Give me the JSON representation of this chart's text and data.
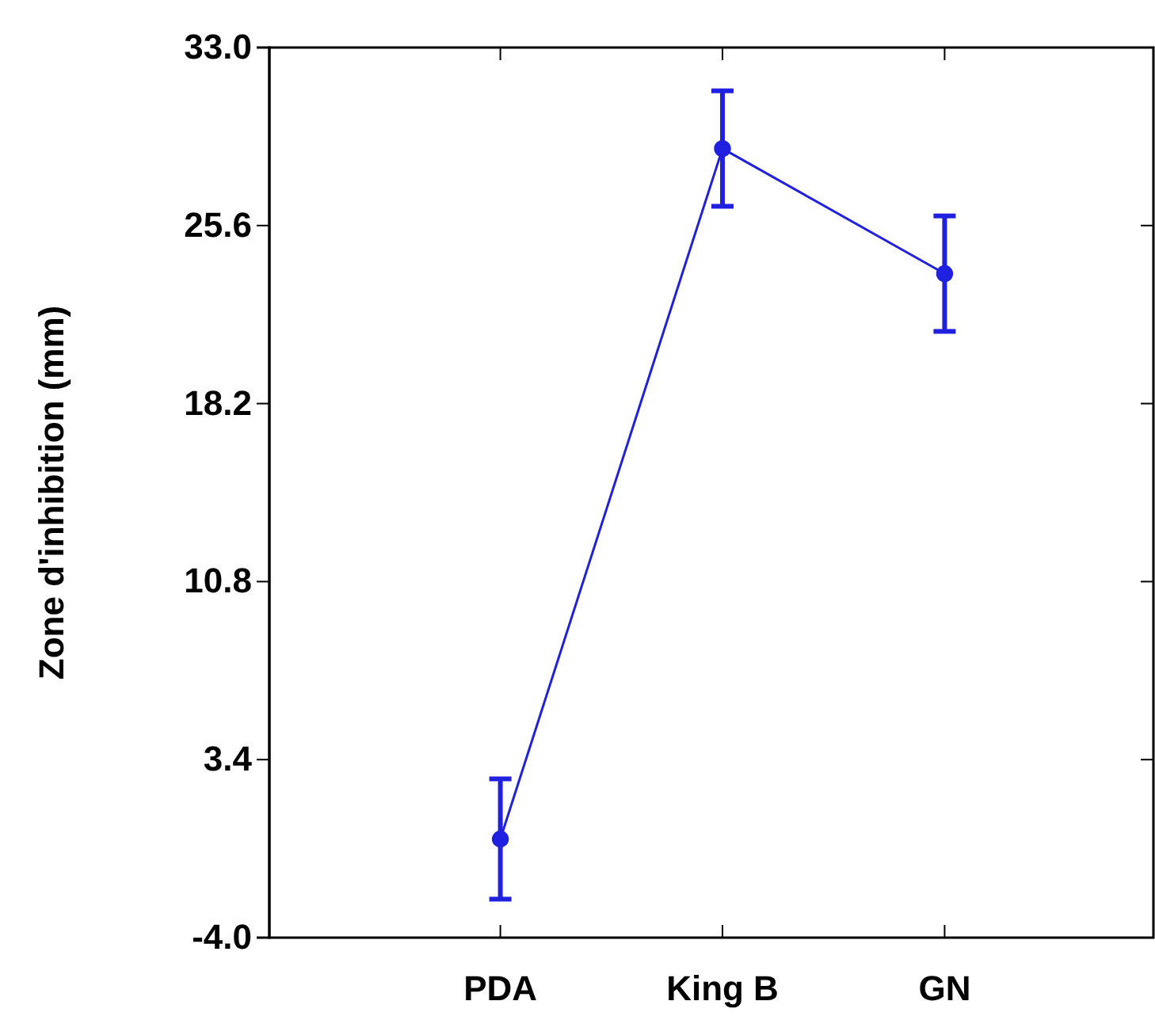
{
  "chart_data": {
    "type": "line",
    "ylabel": "Zone d'inhibition (mm)",
    "categories": [
      "PDA",
      "King B",
      "GN"
    ],
    "series": [
      {
        "color": "#2020e0",
        "values": [
          0.1,
          28.8,
          23.6
        ],
        "errors": [
          2.5,
          2.4,
          2.4
        ]
      }
    ],
    "ylim": [
      -4.0,
      33.0
    ],
    "yticks": [
      {
        "value": -4,
        "label": "-4.0"
      },
      {
        "value": 3.4,
        "label": "3.4"
      },
      {
        "value": 10.8,
        "label": "10.8"
      },
      {
        "value": 18.2,
        "label": "18.2"
      },
      {
        "value": 25.6,
        "label": "25.6"
      },
      {
        "value": 33,
        "label": "33.0"
      }
    ],
    "marker": "circle",
    "line_style": "solid",
    "grid": false
  }
}
